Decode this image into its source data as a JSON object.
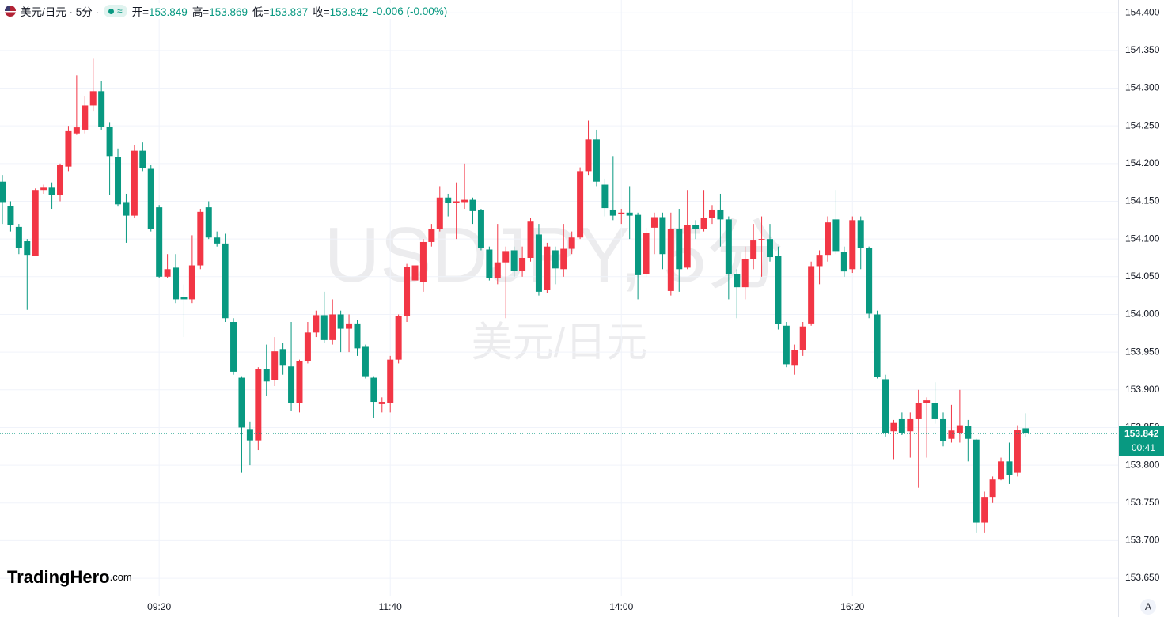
{
  "chart_data": {
    "type": "candlestick",
    "header": {
      "symbol": "美元/日元 · 5分 ·",
      "badge": "≈",
      "fields": [
        {
          "label": "开=",
          "value": 153.849
        },
        {
          "label": "高=",
          "value": 153.869
        },
        {
          "label": "低=",
          "value": 153.837
        },
        {
          "label": "收=",
          "value": 153.842
        }
      ],
      "change": "-0.006 (-0.00%)"
    },
    "watermark": "USDJPY, 5分",
    "watermark_sub": "美元/日元",
    "logo": {
      "name": "TradingHero",
      "suffix": ".com"
    },
    "scale_mode": "A",
    "last_price": 153.842,
    "countdown": "00:41",
    "up_color": "#f23645",
    "down_color": "#089981",
    "grid": true,
    "ylim": [
      153.627,
      154.417
    ],
    "yticks": [
      {
        "value": 153.65,
        "label": "153.650"
      },
      {
        "value": 153.7,
        "label": "153.700"
      },
      {
        "value": 153.75,
        "label": "153.750"
      },
      {
        "value": 153.8,
        "label": "153.800"
      },
      {
        "value": 153.85,
        "label": "153.850"
      },
      {
        "value": 153.9,
        "label": "153.900"
      },
      {
        "value": 153.95,
        "label": "153.950"
      },
      {
        "value": 154.0,
        "label": "154.000"
      },
      {
        "value": 154.05,
        "label": "154.050"
      },
      {
        "value": 154.1,
        "label": "154.100"
      },
      {
        "value": 154.15,
        "label": "154.150"
      },
      {
        "value": 154.2,
        "label": "154.200"
      },
      {
        "value": 154.25,
        "label": "154.250"
      },
      {
        "value": 154.3,
        "label": "154.300"
      },
      {
        "value": 154.35,
        "label": "154.350"
      },
      {
        "value": 154.4,
        "label": "154.400"
      }
    ],
    "categories": [
      null,
      null,
      null,
      null,
      null,
      null,
      null,
      null,
      null,
      null,
      null,
      null,
      null,
      null,
      null,
      null,
      null,
      null,
      null,
      "09:20",
      null,
      null,
      null,
      null,
      null,
      null,
      null,
      null,
      null,
      null,
      null,
      null,
      null,
      null,
      null,
      null,
      null,
      null,
      null,
      null,
      null,
      null,
      null,
      null,
      null,
      null,
      null,
      "11:40",
      null,
      null,
      null,
      null,
      null,
      null,
      null,
      null,
      null,
      null,
      null,
      null,
      null,
      null,
      null,
      null,
      null,
      null,
      null,
      null,
      null,
      null,
      null,
      null,
      null,
      null,
      null,
      "14:00",
      null,
      null,
      null,
      null,
      null,
      null,
      null,
      null,
      null,
      null,
      null,
      null,
      null,
      null,
      null,
      null,
      null,
      null,
      null,
      null,
      null,
      null,
      null,
      null,
      null,
      null,
      null,
      "16:20",
      null,
      null,
      null,
      null,
      null,
      null,
      null,
      null,
      null,
      null,
      null,
      null,
      null,
      null,
      null,
      null,
      null,
      null,
      null,
      null,
      null
    ],
    "open": [
      154.176,
      154.144,
      154.116,
      154.097,
      154.078,
      154.165,
      154.168,
      154.158,
      154.196,
      154.24,
      154.245,
      154.277,
      154.296,
      154.249,
      154.209,
      154.149,
      154.131,
      154.217,
      154.193,
      154.142,
      154.05,
      154.062,
      154.023,
      154.02,
      154.065,
      154.142,
      154.102,
      154.094,
      153.99,
      153.916,
      153.848,
      153.833,
      153.928,
      153.913,
      153.954,
      153.931,
      153.882,
      153.938,
      153.976,
      153.999,
      153.966,
      154.0,
      153.981,
      153.988,
      153.957,
      153.916,
      153.881,
      153.882,
      153.94,
      153.998,
      154.045,
      154.043,
      154.096,
      154.113,
      154.155,
      154.148,
      154.149,
      154.152,
      154.139,
      154.086,
      154.048,
      154.069,
      154.085,
      154.058,
      154.075,
      154.106,
      154.033,
      154.085,
      154.06,
      154.087,
      154.102,
      154.19,
      154.232,
      154.172,
      154.139,
      154.133,
      154.135,
      154.132,
      154.054,
      154.115,
      154.129,
      154.031,
      154.113,
      154.062,
      154.119,
      154.113,
      154.128,
      154.139,
      154.126,
      154.054,
      154.036,
      154.073,
      154.099,
      154.1,
      154.078,
      153.985,
      153.932,
      153.953,
      153.988,
      154.064,
      154.079,
      154.126,
      154.083,
      154.06,
      154.125,
      154.088,
      154.0,
      153.914,
      153.845,
      153.861,
      153.845,
      153.861,
      153.882,
      153.882,
      153.861,
      153.835,
      153.843,
      153.852,
      153.834,
      153.724,
      153.758,
      153.781,
      153.805,
      153.79,
      153.849
    ],
    "high": [
      154.185,
      154.15,
      154.12,
      154.1,
      154.167,
      154.172,
      154.175,
      154.2,
      154.25,
      154.317,
      154.29,
      154.34,
      154.31,
      154.255,
      154.22,
      154.16,
      154.225,
      154.228,
      154.198,
      154.145,
      154.08,
      154.08,
      154.04,
      154.105,
      154.14,
      154.15,
      154.11,
      154.107,
      153.995,
      153.918,
      153.858,
      153.93,
      153.96,
      153.97,
      153.962,
      153.99,
      153.94,
      153.99,
      154.005,
      154.03,
      154.02,
      154.005,
      154.0,
      153.993,
      153.96,
      153.918,
      153.89,
      153.945,
      154.0,
      154.067,
      154.07,
      154.1,
      154.12,
      154.17,
      154.16,
      154.175,
      154.2,
      154.155,
      154.14,
      154.09,
      154.12,
      154.09,
      154.09,
      154.09,
      154.128,
      154.12,
      154.095,
      154.09,
      154.12,
      154.11,
      154.195,
      154.257,
      154.245,
      154.18,
      154.21,
      154.14,
      154.17,
      154.135,
      154.115,
      154.135,
      154.135,
      154.135,
      154.14,
      154.165,
      154.125,
      154.165,
      154.145,
      154.16,
      154.13,
      154.06,
      154.09,
      154.12,
      154.13,
      154.12,
      154.09,
      153.99,
      153.96,
      153.99,
      154.07,
      154.085,
      154.13,
      154.165,
      154.09,
      154.13,
      154.13,
      154.09,
      154.005,
      153.92,
      153.86,
      153.87,
      153.87,
      153.9,
      153.89,
      153.91,
      153.87,
      153.88,
      153.9,
      153.86,
      153.835,
      153.765,
      153.785,
      153.81,
      153.83,
      153.853,
      153.869
    ],
    "low": [
      154.12,
      154.11,
      154.08,
      154.006,
      154.078,
      154.16,
      154.14,
      154.15,
      154.19,
      154.238,
      154.24,
      154.27,
      154.245,
      154.158,
      154.143,
      154.095,
      154.128,
      154.19,
      154.11,
      154.048,
      154.048,
      154.015,
      153.97,
      154.015,
      154.06,
      154.1,
      154.09,
      153.99,
      153.92,
      153.79,
      153.8,
      153.82,
      153.892,
      153.905,
      153.92,
      153.872,
      153.87,
      153.935,
      153.97,
      153.962,
      153.96,
      153.95,
      153.95,
      153.945,
      153.915,
      153.862,
      153.87,
      153.87,
      153.935,
      153.99,
      154.04,
      154.03,
      154.09,
      154.11,
      154.13,
      154.1,
      154.14,
      154.12,
      154.085,
      154.045,
      154.04,
      153.995,
      154.05,
      154.05,
      154.07,
      154.025,
      154.028,
      154.04,
      154.05,
      154.08,
      154.1,
      154.185,
      154.17,
      154.13,
      154.125,
      154.12,
      154.1,
      154.02,
      154.05,
      154.08,
      154.06,
      154.025,
      154.03,
      154.06,
      154.1,
      154.11,
      154.12,
      154.09,
      154.02,
      153.995,
      154.02,
      154.06,
      154.05,
      154.07,
      153.98,
      153.93,
      153.92,
      153.945,
      153.985,
      154.04,
      154.07,
      154.08,
      154.05,
      154.055,
      154.06,
      153.995,
      153.915,
      153.838,
      153.808,
      153.84,
      153.81,
      153.77,
      153.81,
      153.855,
      153.825,
      153.83,
      153.83,
      153.805,
      153.71,
      153.71,
      153.75,
      153.78,
      153.775,
      153.785,
      153.837
    ],
    "close": [
      154.149,
      154.118,
      154.088,
      154.079,
      154.165,
      154.168,
      154.158,
      154.198,
      154.244,
      154.248,
      154.277,
      154.296,
      154.249,
      154.21,
      154.146,
      154.131,
      154.217,
      154.194,
      154.113,
      154.05,
      154.06,
      154.02,
      154.02,
      154.065,
      154.136,
      154.102,
      154.094,
      153.995,
      153.924,
      153.85,
      153.833,
      153.928,
      153.911,
      153.951,
      153.932,
      153.882,
      153.938,
      153.976,
      153.999,
      153.966,
      154.0,
      153.981,
      153.988,
      153.955,
      153.918,
      153.884,
      153.884,
      153.94,
      153.998,
      154.063,
      154.065,
      154.096,
      154.113,
      154.155,
      154.148,
      154.15,
      154.152,
      154.137,
      154.088,
      154.048,
      154.069,
      154.084,
      154.058,
      154.075,
      154.123,
      154.03,
      154.09,
      154.061,
      154.087,
      154.102,
      154.19,
      154.232,
      154.176,
      154.141,
      154.131,
      154.135,
      154.131,
      154.052,
      154.108,
      154.129,
      154.08,
      154.113,
      154.06,
      154.119,
      154.113,
      154.128,
      154.139,
      154.126,
      154.054,
      154.036,
      154.073,
      154.098,
      154.1,
      154.076,
      153.987,
      153.934,
      153.953,
      153.984,
      154.064,
      154.079,
      154.122,
      154.084,
      154.057,
      154.125,
      154.088,
      154.001,
      153.917,
      153.843,
      153.856,
      153.843,
      153.861,
      153.882,
      153.886,
      153.861,
      153.832,
      153.846,
      153.853,
      153.835,
      153.724,
      153.758,
      153.781,
      153.805,
      153.787,
      153.847,
      153.842
    ]
  }
}
